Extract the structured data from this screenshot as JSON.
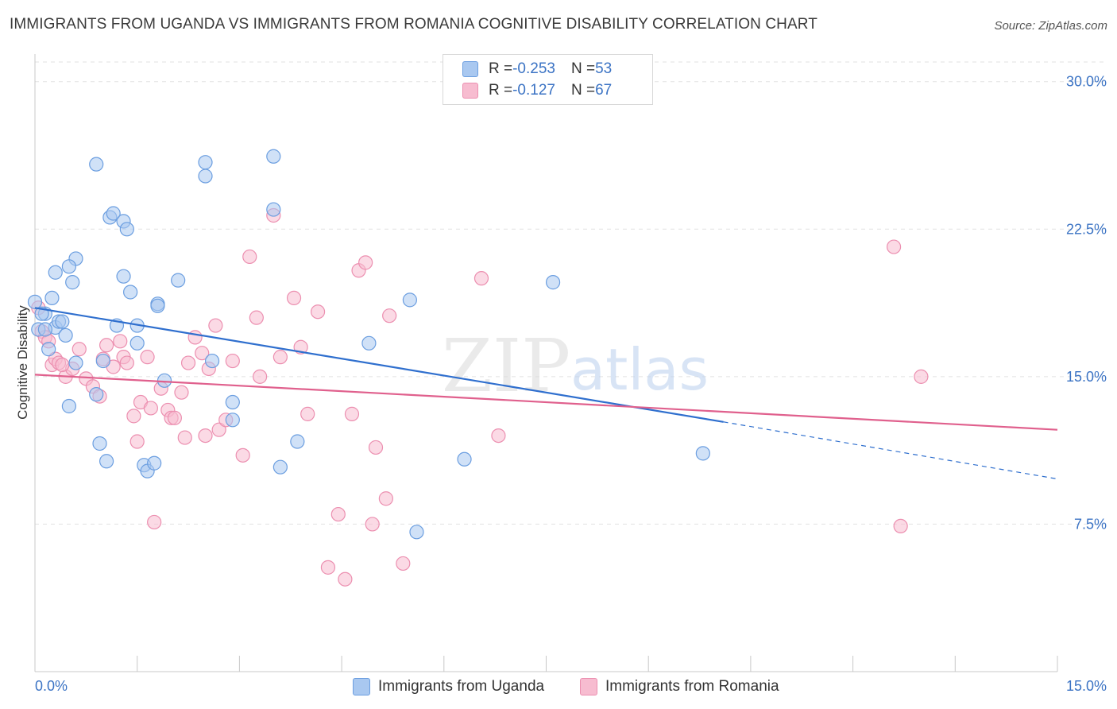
{
  "title": "IMMIGRANTS FROM UGANDA VS IMMIGRANTS FROM ROMANIA COGNITIVE DISABILITY CORRELATION CHART",
  "source": "Source: ZipAtlas.com",
  "watermark": {
    "zip": "ZIP",
    "atlas": "atlas"
  },
  "colors": {
    "uganda_fill": "#a9c8f0",
    "uganda_stroke": "#6b9ee0",
    "uganda_line": "#2f6fce",
    "romania_fill": "#f7bcd0",
    "romania_stroke": "#ec8fb0",
    "romania_line": "#e0608d",
    "axis_text": "#3b73c4",
    "grid": "#e2e2e2"
  },
  "legend": {
    "rows": [
      {
        "r_label": "R = ",
        "r_value": "-0.253",
        "n_label": "N = ",
        "n_value": "53"
      },
      {
        "r_label": "R = ",
        "r_value": "-0.127",
        "n_label": "N = ",
        "n_value": "67"
      }
    ]
  },
  "chart_data": {
    "type": "scatter",
    "title": "IMMIGRANTS FROM UGANDA VS IMMIGRANTS FROM ROMANIA COGNITIVE DISABILITY CORRELATION CHART",
    "xlabel": "",
    "ylabel": "Cognitive Disability",
    "xlim": [
      0,
      15
    ],
    "ylim": [
      0,
      31
    ],
    "x_tick_labels": [
      "0.0%",
      "15.0%"
    ],
    "y_ticks": [
      7.5,
      15.0,
      22.5,
      30.0
    ],
    "y_tick_labels": [
      "7.5%",
      "15.0%",
      "22.5%",
      "30.0%"
    ],
    "grid": true,
    "legend_position": "top-center",
    "series": [
      {
        "name": "Immigrants from Uganda",
        "r": -0.253,
        "n": 53,
        "trend": {
          "x0": 0.0,
          "y0": 18.5,
          "x1": 10.1,
          "y1": 12.7,
          "dash_to_x": 15.0,
          "dash_to_y": 9.8
        },
        "points": [
          [
            0.0,
            18.8
          ],
          [
            0.05,
            17.4
          ],
          [
            0.15,
            18.2
          ],
          [
            0.2,
            16.4
          ],
          [
            0.25,
            19.0
          ],
          [
            0.3,
            17.5
          ],
          [
            0.35,
            17.8
          ],
          [
            0.45,
            17.1
          ],
          [
            0.55,
            19.8
          ],
          [
            0.6,
            21.0
          ],
          [
            0.9,
            25.8
          ],
          [
            1.1,
            23.1
          ],
          [
            1.15,
            23.3
          ],
          [
            1.3,
            22.9
          ],
          [
            1.35,
            22.5
          ],
          [
            1.4,
            19.3
          ],
          [
            1.2,
            17.6
          ],
          [
            1.3,
            20.1
          ],
          [
            1.5,
            17.6
          ],
          [
            1.5,
            16.7
          ],
          [
            1.8,
            18.7
          ],
          [
            2.1,
            19.9
          ],
          [
            0.5,
            20.6
          ],
          [
            0.6,
            15.7
          ],
          [
            0.9,
            14.1
          ],
          [
            0.95,
            11.6
          ],
          [
            1.0,
            15.8
          ],
          [
            1.05,
            10.7
          ],
          [
            1.6,
            10.5
          ],
          [
            1.65,
            10.2
          ],
          [
            1.75,
            10.6
          ],
          [
            1.8,
            18.6
          ],
          [
            1.9,
            14.8
          ],
          [
            2.5,
            25.9
          ],
          [
            2.5,
            25.2
          ],
          [
            2.6,
            15.8
          ],
          [
            2.9,
            12.8
          ],
          [
            2.9,
            13.7
          ],
          [
            3.5,
            26.2
          ],
          [
            3.5,
            23.5
          ],
          [
            3.6,
            10.4
          ],
          [
            3.85,
            11.7
          ],
          [
            4.9,
            16.7
          ],
          [
            5.5,
            18.9
          ],
          [
            5.6,
            7.1
          ],
          [
            6.3,
            10.8
          ],
          [
            7.6,
            19.8
          ],
          [
            9.8,
            11.1
          ],
          [
            0.1,
            18.2
          ],
          [
            0.3,
            20.3
          ],
          [
            0.4,
            17.8
          ],
          [
            0.15,
            17.4
          ],
          [
            0.5,
            13.5
          ]
        ]
      },
      {
        "name": "Immigrants from Romania",
        "r": -0.127,
        "n": 67,
        "trend": {
          "x0": 0.0,
          "y0": 15.1,
          "x1": 15.0,
          "y1": 12.3
        },
        "points": [
          [
            0.05,
            18.5
          ],
          [
            0.1,
            17.3
          ],
          [
            0.15,
            17.0
          ],
          [
            0.2,
            16.8
          ],
          [
            0.25,
            15.6
          ],
          [
            0.3,
            15.9
          ],
          [
            0.35,
            15.7
          ],
          [
            0.45,
            15.0
          ],
          [
            0.55,
            15.4
          ],
          [
            0.65,
            16.4
          ],
          [
            0.75,
            14.9
          ],
          [
            0.85,
            14.5
          ],
          [
            0.95,
            14.0
          ],
          [
            1.0,
            15.9
          ],
          [
            1.05,
            16.6
          ],
          [
            1.15,
            15.5
          ],
          [
            1.25,
            16.8
          ],
          [
            1.3,
            16.0
          ],
          [
            1.35,
            15.7
          ],
          [
            1.45,
            13.0
          ],
          [
            1.5,
            11.7
          ],
          [
            1.55,
            13.7
          ],
          [
            1.65,
            16.0
          ],
          [
            1.7,
            13.4
          ],
          [
            1.85,
            14.4
          ],
          [
            1.95,
            13.3
          ],
          [
            2.0,
            12.9
          ],
          [
            2.05,
            12.9
          ],
          [
            2.15,
            14.2
          ],
          [
            2.25,
            15.7
          ],
          [
            2.35,
            17.0
          ],
          [
            2.45,
            16.2
          ],
          [
            2.5,
            12.0
          ],
          [
            2.55,
            15.4
          ],
          [
            2.65,
            17.6
          ],
          [
            2.7,
            12.3
          ],
          [
            2.8,
            12.8
          ],
          [
            2.9,
            15.8
          ],
          [
            3.05,
            11.0
          ],
          [
            3.15,
            21.1
          ],
          [
            3.25,
            18.0
          ],
          [
            3.3,
            15.0
          ],
          [
            3.5,
            23.2
          ],
          [
            3.6,
            16.0
          ],
          [
            3.8,
            19.0
          ],
          [
            3.9,
            16.5
          ],
          [
            4.0,
            13.1
          ],
          [
            4.15,
            18.3
          ],
          [
            4.3,
            5.3
          ],
          [
            4.45,
            8.0
          ],
          [
            4.55,
            4.7
          ],
          [
            4.65,
            13.1
          ],
          [
            4.75,
            20.4
          ],
          [
            4.85,
            20.8
          ],
          [
            4.95,
            7.5
          ],
          [
            5.0,
            11.4
          ],
          [
            5.15,
            8.8
          ],
          [
            5.2,
            18.1
          ],
          [
            5.4,
            5.5
          ],
          [
            6.55,
            20.0
          ],
          [
            6.8,
            12.0
          ],
          [
            12.6,
            21.6
          ],
          [
            12.7,
            7.4
          ],
          [
            13.0,
            15.0
          ],
          [
            1.75,
            7.6
          ],
          [
            0.4,
            15.6
          ],
          [
            2.2,
            11.9
          ]
        ]
      }
    ]
  },
  "bottom_legend": [
    {
      "label": "Immigrants from Uganda"
    },
    {
      "label": "Immigrants from Romania"
    }
  ]
}
